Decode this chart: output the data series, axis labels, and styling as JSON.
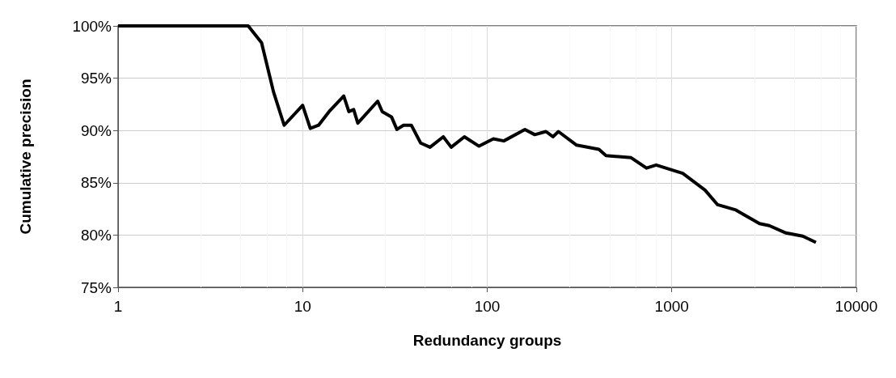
{
  "chart_data": {
    "type": "line",
    "xlabel": "Redundancy groups",
    "ylabel": "Cumulative precision",
    "log": "x",
    "grid": true,
    "marker": "none",
    "line_style": "solid",
    "xlim": [
      1,
      10000
    ],
    "xticks": [
      1,
      10,
      100,
      1000,
      10000
    ],
    "ylim": [
      75,
      100
    ],
    "yticks": [
      {
        "value": 75,
        "label": "75%"
      },
      {
        "value": 80,
        "label": "80%"
      },
      {
        "value": 85,
        "label": "85%"
      },
      {
        "value": 90,
        "label": "90%"
      },
      {
        "value": 95,
        "label": "95%"
      },
      {
        "value": 100,
        "label": "100%"
      }
    ],
    "series": [
      {
        "color": "#000000",
        "x": [
          1,
          5.07,
          5.99,
          6.95,
          7.94,
          10,
          11,
          12.2,
          13.9,
          16.7,
          17.8,
          18.9,
          19.9,
          25.5,
          27,
          30.3,
          32.4,
          35.2,
          38.8,
          43.6,
          49,
          57.8,
          63.8,
          75.2,
          90.3,
          108,
          123,
          160,
          181,
          208,
          227,
          243,
          305,
          403,
          440,
          602,
          729,
          823,
          1014,
          1146,
          1514,
          1771,
          2223,
          2987,
          3374,
          4153,
          5120,
          6038
        ],
        "values": [
          100,
          100,
          98.4,
          93.7,
          90.5,
          92.4,
          90.2,
          90.5,
          91.8,
          93.3,
          91.8,
          92,
          90.7,
          92.8,
          91.8,
          91.3,
          90.1,
          90.5,
          90.5,
          88.8,
          88.4,
          89.4,
          88.4,
          89.4,
          88.5,
          89.2,
          89,
          90.1,
          89.6,
          89.9,
          89.4,
          89.9,
          88.6,
          88.2,
          87.6,
          87.4,
          86.4,
          86.7,
          86.2,
          85.9,
          84.3,
          82.9,
          82.4,
          81.1,
          80.9,
          80.2,
          79.9,
          79.3
        ]
      }
    ]
  }
}
